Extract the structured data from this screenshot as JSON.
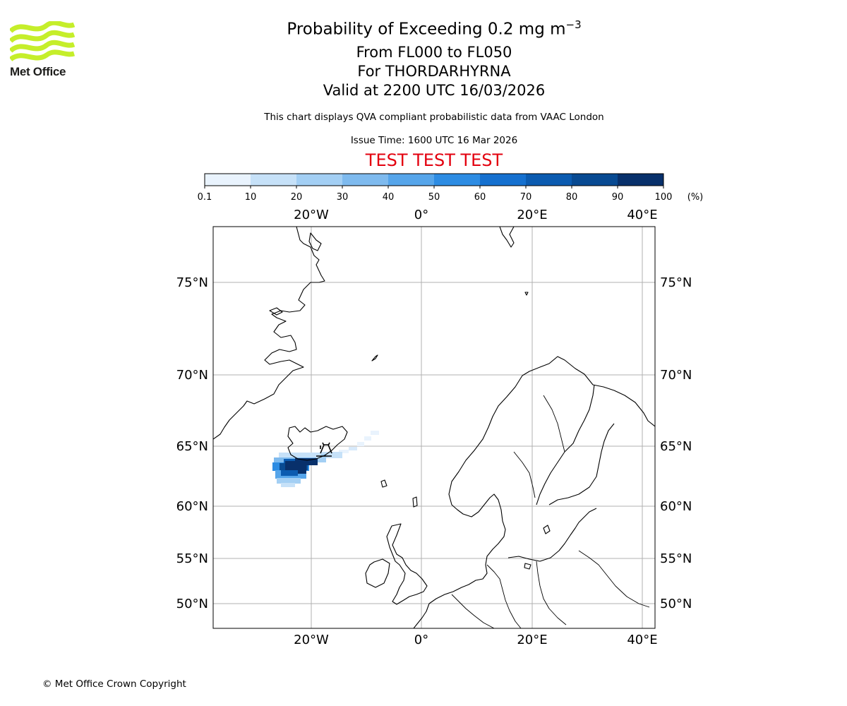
{
  "brand": {
    "name": "Met Office",
    "colors": {
      "logo_green": "#c5ee2a",
      "logo_text": "#1d1d1b",
      "test_red": "#e3000f"
    }
  },
  "header": {
    "title_prefix": "Probability of Exceeding 0.2 mg m",
    "title_exponent": "−3",
    "flight_levels": "From FL000 to FL050",
    "volcano": "For THORDARHYRNA",
    "valid": "Valid at 2200 UTC 16/03/2026",
    "description": "This chart displays QVA compliant probabilistic data from VAAC London",
    "issue_time": "Issue Time: 1600 UTC 16 Mar 2026",
    "test_banner": "TEST TEST TEST"
  },
  "colorbar": {
    "tick_labels": [
      "0.1",
      "10",
      "20",
      "30",
      "40",
      "50",
      "60",
      "70",
      "80",
      "90",
      "100"
    ],
    "colors": [
      "#e9f3fd",
      "#c6e1f8",
      "#a3cff4",
      "#7ebaee",
      "#56a5ea",
      "#2d8ce3",
      "#1570cf",
      "#0b5bb0",
      "#084a92",
      "#08306b"
    ],
    "unit": "(%)"
  },
  "map": {
    "lon_labels": [
      "20°W",
      "0°",
      "20°E",
      "40°E"
    ],
    "lat_labels": [
      "75°N",
      "70°N",
      "65°N",
      "60°N",
      "55°N",
      "50°N"
    ],
    "plume": {
      "description_values": [
        {
          "lon": -21,
          "lat": 63.5,
          "probability": 95
        },
        {
          "lon": -23,
          "lat": 63.2,
          "probability": 85
        },
        {
          "lon": -18,
          "lat": 64.3,
          "probability": 40
        },
        {
          "lon": -10,
          "lat": 65.3,
          "probability": 5
        }
      ]
    },
    "volcano_symbol": "volcano-icon"
  },
  "footer": {
    "copyright": "© Met Office Crown Copyright"
  }
}
